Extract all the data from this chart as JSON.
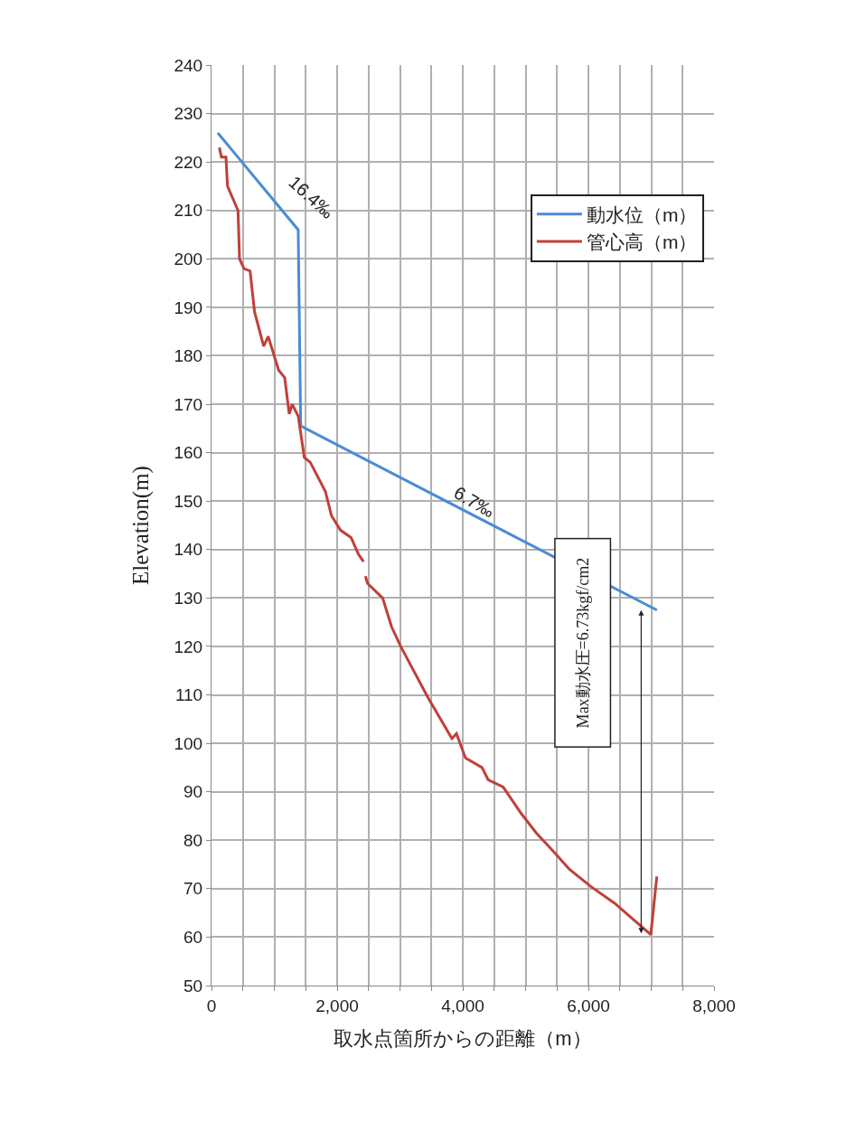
{
  "chart_data": {
    "type": "line",
    "xlabel": "取水点箇所からの距離（m）",
    "ylabel": "Elevation(m)",
    "series": [
      {
        "name": "動水位（m）",
        "color": "#4a8bd6",
        "x": [
          100,
          1380,
          1420,
          7090
        ],
        "values": [
          226,
          206,
          165.5,
          127.5
        ]
      },
      {
        "name": "管心高（m）",
        "color": "#c0403a",
        "x": [
          125,
          158,
          230,
          255,
          422,
          446,
          518,
          614,
          686,
          830,
          902,
          1069,
          1165,
          1237,
          1285,
          1381,
          1477,
          1573,
          1813,
          1909,
          2053,
          2221,
          2341,
          2420,
          2435,
          2450,
          2484,
          2724,
          2868,
          3012,
          3444,
          3827,
          3899,
          4043,
          4307,
          4403,
          4643,
          4931,
          5170,
          5458,
          5698,
          6033,
          6417,
          6993,
          7089
        ],
        "values": [
          223,
          221,
          221,
          215,
          210,
          200,
          198,
          197.5,
          189,
          182,
          184,
          177,
          175.5,
          168,
          170,
          167.5,
          159,
          158,
          152,
          147,
          144,
          142.5,
          139,
          137.5,
          null,
          134.5,
          133,
          130,
          124,
          120,
          109.5,
          101,
          102,
          97,
          95,
          92.5,
          91,
          85.5,
          81.5,
          77.5,
          74,
          70.5,
          67,
          60.5,
          72.5
        ]
      }
    ],
    "annotations": [
      "16.4‰",
      "6.7‰",
      "Max動水圧=6.73kgf/cm2"
    ],
    "xlim": [
      0,
      8000
    ],
    "xticks": [
      0,
      {
        "value": 500,
        "label": null
      },
      {
        "value": 1000,
        "label": null
      },
      {
        "value": 1500,
        "label": null
      },
      {
        "value": 2000,
        "label": "2,000"
      },
      {
        "value": 2500,
        "label": null
      },
      {
        "value": 3000,
        "label": null
      },
      {
        "value": 3500,
        "label": null
      },
      {
        "value": 4000,
        "label": "4,000"
      },
      {
        "value": 4500,
        "label": null
      },
      {
        "value": 5000,
        "label": null
      },
      {
        "value": 5500,
        "label": null
      },
      {
        "value": 6000,
        "label": "6,000"
      },
      {
        "value": 6500,
        "label": null
      },
      {
        "value": 7000,
        "label": null
      },
      {
        "value": 7500,
        "label": null
      },
      {
        "value": 8000,
        "label": "8,000"
      }
    ],
    "ylim": [
      50,
      240
    ],
    "yticks": [
      50,
      60,
      70,
      80,
      90,
      100,
      110,
      120,
      130,
      140,
      150,
      160,
      170,
      180,
      190,
      200,
      210,
      220,
      230,
      240
    ],
    "grid": true,
    "legend": "top right",
    "marker": "none",
    "line_style": "solid"
  }
}
